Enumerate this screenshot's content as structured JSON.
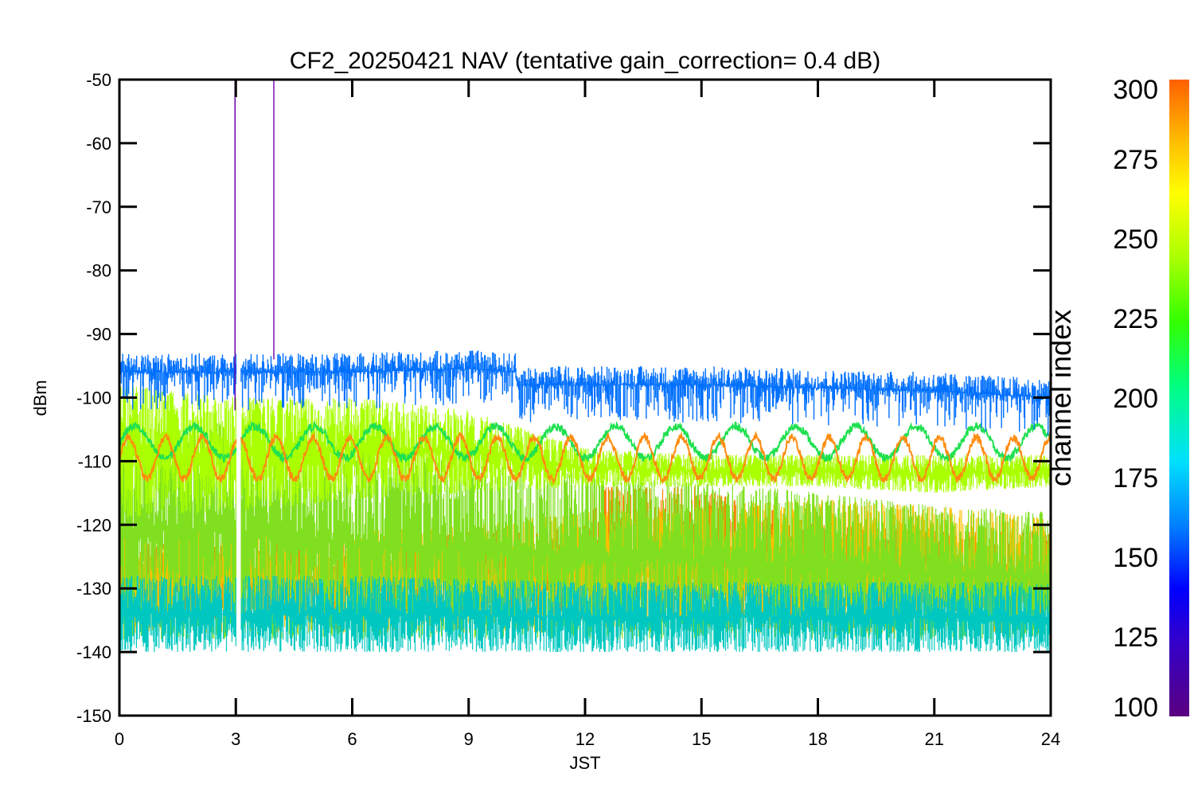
{
  "chart_data": {
    "type": "line",
    "title": "CF2_20250421 NAV (tentative gain_correction=  0.4 dB)",
    "xlabel": "JST",
    "ylabel": "dBm",
    "xlim": [
      0,
      24
    ],
    "ylim": [
      -150,
      -50
    ],
    "x_ticks": [
      0,
      3,
      6,
      9,
      12,
      15,
      18,
      21,
      24
    ],
    "y_ticks": [
      -50,
      -60,
      -70,
      -80,
      -90,
      -100,
      -110,
      -120,
      -130,
      -140,
      -150
    ],
    "grid": false,
    "colorbar": {
      "label": "channel index",
      "range": [
        100,
        300
      ],
      "ticks": [
        300,
        275,
        250,
        225,
        200,
        175,
        150,
        125,
        100
      ],
      "colormap": [
        "#5a0080",
        "#3300cc",
        "#0000ff",
        "#0080ff",
        "#00e0ff",
        "#00ff80",
        "#33ff00",
        "#aaff00",
        "#ffff00",
        "#ffc000",
        "#ff8000",
        "#ff6000"
      ]
    },
    "gaps": [
      [
        3.02,
        3.12
      ]
    ],
    "spikes": [
      {
        "x": 2.98,
        "y_top": -50,
        "y_bottom": -102,
        "color": "#6a00a8"
      },
      {
        "x": 3.98,
        "y_top": -50,
        "y_bottom": -94,
        "color": "#7a10b0"
      },
      {
        "x": 3.0,
        "y_top": -148,
        "y_bottom": -150,
        "color": "#ff8000"
      }
    ],
    "series": [
      {
        "color": "#ff8000",
        "kind": "band",
        "points": [
          [
            0,
            -123,
            -135
          ],
          [
            3,
            -123,
            -135
          ],
          [
            6,
            -122,
            -135
          ],
          [
            9,
            -121,
            -134
          ],
          [
            12,
            -120,
            -135
          ],
          [
            12.2,
            -114,
            -135
          ],
          [
            15,
            -114,
            -134
          ],
          [
            18,
            -120,
            -135
          ],
          [
            21,
            -121,
            -135
          ],
          [
            24,
            -121,
            -135
          ]
        ]
      },
      {
        "color": "#ffc000",
        "kind": "band",
        "points": [
          [
            0,
            -119,
            -137
          ],
          [
            3,
            -120,
            -137
          ],
          [
            6,
            -121,
            -137
          ],
          [
            9,
            -120,
            -137
          ],
          [
            12,
            -118,
            -137
          ],
          [
            12.2,
            -118,
            -137
          ],
          [
            15,
            -117,
            -137
          ],
          [
            18,
            -116,
            -137
          ],
          [
            21,
            -117,
            -137
          ],
          [
            24,
            -119,
            -137
          ]
        ]
      },
      {
        "color": "#80e020",
        "kind": "band",
        "points": [
          [
            0,
            -104,
            -138
          ],
          [
            3,
            -104,
            -138
          ],
          [
            6,
            -108,
            -138
          ],
          [
            9,
            -110,
            -138
          ],
          [
            12,
            -112,
            -138
          ],
          [
            15,
            -113,
            -138
          ],
          [
            18,
            -115,
            -138
          ],
          [
            21,
            -117,
            -138
          ],
          [
            24,
            -118,
            -138
          ]
        ]
      },
      {
        "color": "#00c8c0",
        "kind": "band",
        "points": [
          [
            0,
            -128,
            -140
          ],
          [
            6,
            -128,
            -140
          ],
          [
            12,
            -129,
            -140
          ],
          [
            18,
            -129,
            -140
          ],
          [
            24,
            -129,
            -140
          ]
        ]
      },
      {
        "color": "#aaff00",
        "kind": "band",
        "points": [
          [
            0,
            -98,
            -119
          ],
          [
            3,
            -100,
            -118
          ],
          [
            6,
            -100,
            -116
          ],
          [
            9,
            -102,
            -115
          ],
          [
            12,
            -108,
            -114
          ],
          [
            15,
            -109,
            -114
          ],
          [
            18,
            -109,
            -114
          ],
          [
            21,
            -109,
            -115
          ],
          [
            24,
            -109,
            -114
          ]
        ]
      },
      {
        "color": "#20e050",
        "kind": "sine",
        "base": -107,
        "amp": 2.5,
        "period": 1.55,
        "x_range": [
          0,
          24
        ]
      },
      {
        "color": "#ff8c10",
        "kind": "sine",
        "base": -109.5,
        "amp": 3.3,
        "period": 0.95,
        "x_range": [
          0,
          24
        ]
      },
      {
        "color": "#0070ff",
        "kind": "trace",
        "points": [
          [
            0,
            -96
          ],
          [
            3,
            -96
          ],
          [
            6,
            -96
          ],
          [
            9,
            -95.5
          ],
          [
            10.2,
            -96
          ],
          [
            10.25,
            -98
          ],
          [
            12,
            -98
          ],
          [
            15,
            -98
          ],
          [
            18,
            -98.5
          ],
          [
            21,
            -99
          ],
          [
            24,
            -100
          ]
        ],
        "noise_up": 3,
        "noise_down": 6
      }
    ]
  }
}
